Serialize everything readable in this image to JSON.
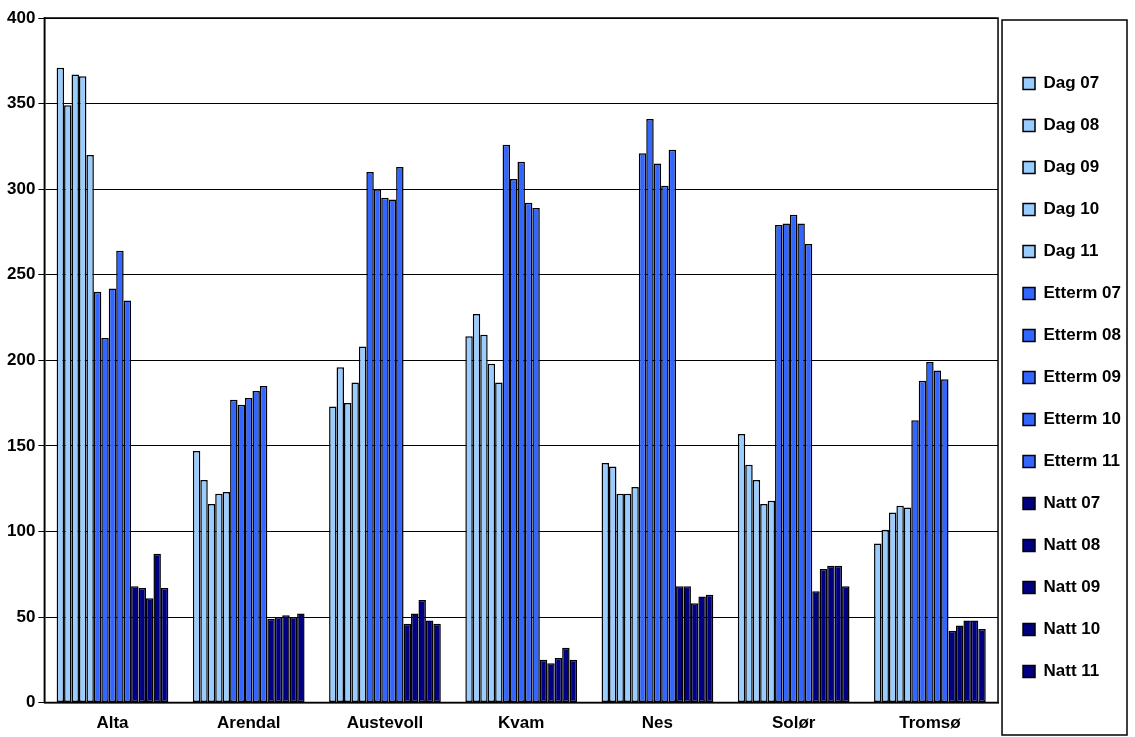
{
  "chart_data": {
    "type": "bar",
    "categories": [
      "Alta",
      "Arendal",
      "Austevoll",
      "Kvam",
      "Nes",
      "Solør",
      "Tromsø"
    ],
    "series": [
      {
        "name": "Dag 07",
        "color": "#99ccff",
        "values": [
          371,
          147,
          173,
          214,
          140,
          157,
          93
        ]
      },
      {
        "name": "Dag 08",
        "color": "#99ccff",
        "values": [
          349,
          130,
          196,
          227,
          138,
          139,
          101
        ]
      },
      {
        "name": "Dag 09",
        "color": "#99ccff",
        "values": [
          367,
          116,
          175,
          215,
          122,
          130,
          111
        ]
      },
      {
        "name": "Dag 10",
        "color": "#99ccff",
        "values": [
          366,
          122,
          187,
          198,
          122,
          116,
          115
        ]
      },
      {
        "name": "Dag 11",
        "color": "#99ccff",
        "values": [
          320,
          123,
          208,
          187,
          126,
          118,
          114
        ]
      },
      {
        "name": "Etterm 07",
        "color": "#3366ff",
        "values": [
          240,
          177,
          310,
          326,
          321,
          279,
          165
        ]
      },
      {
        "name": "Etterm 08",
        "color": "#3366ff",
        "values": [
          213,
          174,
          300,
          306,
          341,
          280,
          188
        ]
      },
      {
        "name": "Etterm 09",
        "color": "#3366ff",
        "values": [
          242,
          178,
          295,
          316,
          315,
          285,
          199
        ]
      },
      {
        "name": "Etterm 10",
        "color": "#3366ff",
        "values": [
          264,
          182,
          294,
          292,
          302,
          280,
          194
        ]
      },
      {
        "name": "Etterm 11",
        "color": "#3366ff",
        "values": [
          235,
          185,
          313,
          289,
          323,
          268,
          189
        ]
      },
      {
        "name": "Natt 07",
        "color": "#000080",
        "values": [
          68,
          49,
          46,
          25,
          68,
          65,
          42
        ]
      },
      {
        "name": "Natt 08",
        "color": "#000080",
        "values": [
          67,
          50,
          52,
          23,
          68,
          78,
          45
        ]
      },
      {
        "name": "Natt 09",
        "color": "#000080",
        "values": [
          61,
          51,
          60,
          26,
          58,
          80,
          48
        ]
      },
      {
        "name": "Natt 10",
        "color": "#000080",
        "values": [
          87,
          50,
          48,
          32,
          62,
          80,
          48
        ]
      },
      {
        "name": "Natt 11",
        "color": "#000080",
        "values": [
          67,
          52,
          46,
          25,
          63,
          68,
          43
        ]
      }
    ],
    "ylim": [
      0,
      400
    ],
    "yticks": [
      0,
      50,
      100,
      150,
      200,
      250,
      300,
      350,
      400
    ],
    "grid": "y",
    "legend": "right"
  }
}
